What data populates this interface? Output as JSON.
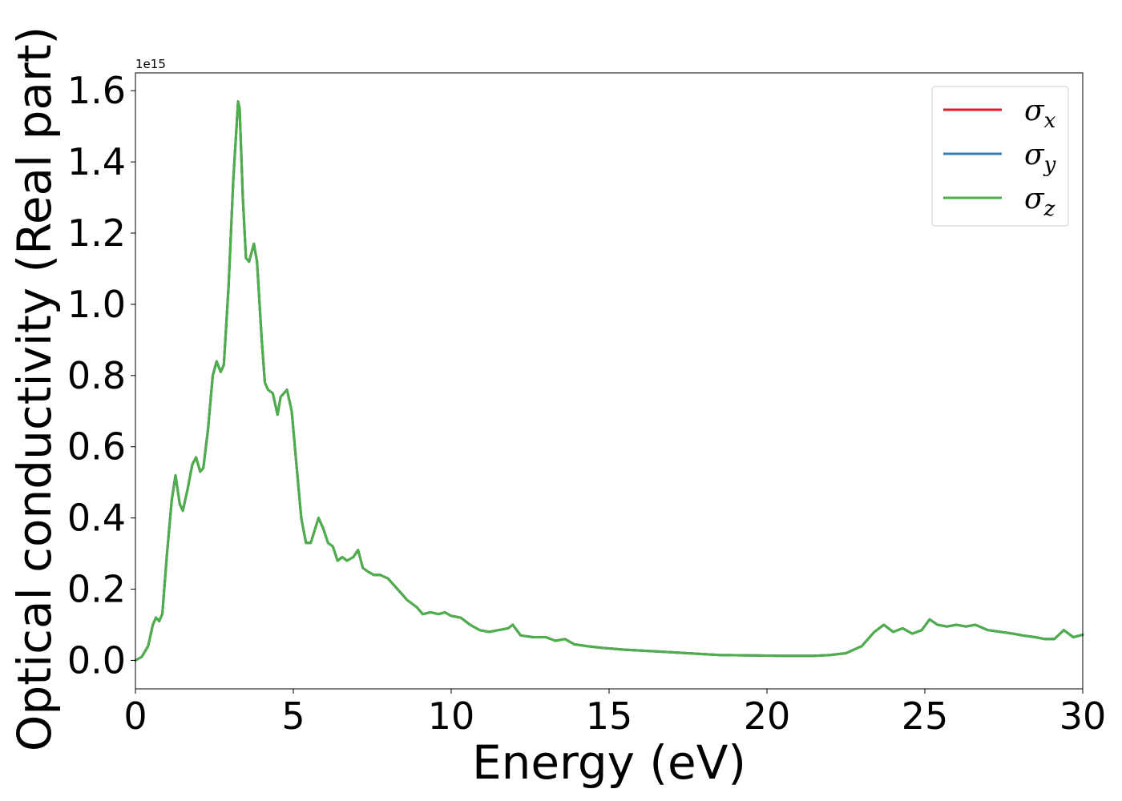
{
  "chart_data": {
    "type": "line",
    "xlabel": "Energy (eV)",
    "ylabel": "Optical conductivity (Real part)",
    "y_offset_label": "1e15",
    "xlim": [
      0,
      30
    ],
    "ylim": [
      -0.08,
      1.65
    ],
    "x_ticks": [
      0,
      5,
      10,
      15,
      20,
      25,
      30
    ],
    "x_tick_labels": [
      "0",
      "5",
      "10",
      "15",
      "20",
      "25",
      "30"
    ],
    "y_ticks": [
      0.0,
      0.2,
      0.4,
      0.6,
      0.8,
      1.0,
      1.2,
      1.4,
      1.6
    ],
    "y_tick_labels": [
      "0.0",
      "0.2",
      "0.4",
      "0.6",
      "0.8",
      "1.0",
      "1.2",
      "1.4",
      "1.6"
    ],
    "grid": false,
    "legend_position": "top-right",
    "series": [
      {
        "name": "σ",
        "subscript": "x",
        "color": "#e41a1c"
      },
      {
        "name": "σ",
        "subscript": "y",
        "color": "#377eb8"
      },
      {
        "name": "σ",
        "subscript": "z",
        "color": "#4daf4a"
      }
    ],
    "x": [
      0,
      0.2,
      0.4,
      0.55,
      0.65,
      0.75,
      0.85,
      1.0,
      1.15,
      1.27,
      1.4,
      1.5,
      1.65,
      1.8,
      1.92,
      2.05,
      2.15,
      2.3,
      2.45,
      2.57,
      2.7,
      2.8,
      2.95,
      3.1,
      3.25,
      3.3,
      3.4,
      3.5,
      3.6,
      3.75,
      3.85,
      4.0,
      4.1,
      4.2,
      4.35,
      4.5,
      4.6,
      4.8,
      4.95,
      5.1,
      5.25,
      5.4,
      5.55,
      5.8,
      5.95,
      6.1,
      6.25,
      6.4,
      6.55,
      6.7,
      6.9,
      7.05,
      7.2,
      7.35,
      7.55,
      7.75,
      8.0,
      8.3,
      8.6,
      8.9,
      9.1,
      9.35,
      9.6,
      9.8,
      10.0,
      10.3,
      10.6,
      10.9,
      11.2,
      11.5,
      11.8,
      11.95,
      12.2,
      12.6,
      13.0,
      13.3,
      13.6,
      13.9,
      14.3,
      14.8,
      15.5,
      16.5,
      17.5,
      18.5,
      19.5,
      20.5,
      21.5,
      22.0,
      22.5,
      23.0,
      23.4,
      23.7,
      24.0,
      24.3,
      24.6,
      24.9,
      25.15,
      25.4,
      25.7,
      26.0,
      26.3,
      26.6,
      27.0,
      27.4,
      27.8,
      28.1,
      28.5,
      28.8,
      29.1,
      29.4,
      29.7,
      30.0
    ],
    "y": [
      0.0,
      0.01,
      0.04,
      0.1,
      0.12,
      0.11,
      0.13,
      0.3,
      0.45,
      0.52,
      0.44,
      0.42,
      0.48,
      0.55,
      0.57,
      0.53,
      0.54,
      0.65,
      0.8,
      0.84,
      0.81,
      0.83,
      1.05,
      1.35,
      1.57,
      1.55,
      1.3,
      1.13,
      1.12,
      1.17,
      1.12,
      0.9,
      0.78,
      0.76,
      0.75,
      0.69,
      0.74,
      0.76,
      0.7,
      0.55,
      0.4,
      0.33,
      0.33,
      0.4,
      0.37,
      0.33,
      0.32,
      0.28,
      0.29,
      0.28,
      0.29,
      0.31,
      0.26,
      0.25,
      0.24,
      0.24,
      0.23,
      0.2,
      0.17,
      0.15,
      0.13,
      0.135,
      0.13,
      0.135,
      0.125,
      0.12,
      0.1,
      0.085,
      0.08,
      0.085,
      0.09,
      0.1,
      0.07,
      0.065,
      0.065,
      0.055,
      0.06,
      0.045,
      0.04,
      0.035,
      0.03,
      0.025,
      0.02,
      0.015,
      0.014,
      0.013,
      0.013,
      0.015,
      0.02,
      0.04,
      0.08,
      0.1,
      0.08,
      0.09,
      0.075,
      0.085,
      0.115,
      0.1,
      0.095,
      0.1,
      0.095,
      0.1,
      0.085,
      0.08,
      0.075,
      0.07,
      0.065,
      0.06,
      0.06,
      0.085,
      0.065,
      0.072
    ]
  }
}
